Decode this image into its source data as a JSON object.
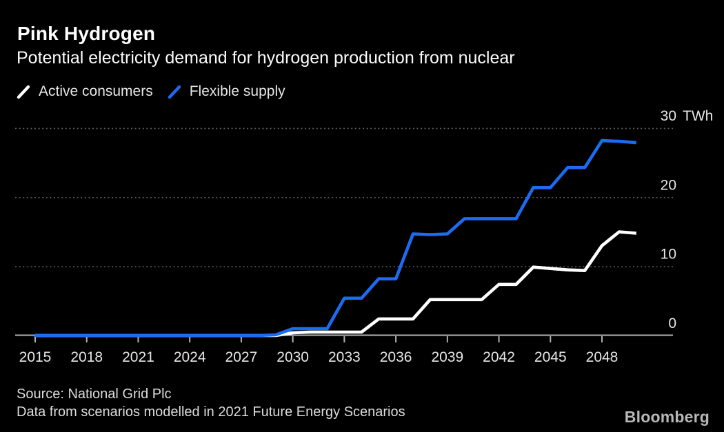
{
  "header": {
    "title": "Pink Hydrogen",
    "subtitle": "Potential electricity demand for hydrogen production from nuclear"
  },
  "legend": {
    "items": [
      {
        "label": "Active consumers",
        "color": "#ffffff"
      },
      {
        "label": "Flexible supply",
        "color": "#1c6cf2"
      }
    ]
  },
  "chart_data": {
    "type": "line",
    "title": "Pink Hydrogen",
    "subtitle": "Potential electricity demand for hydrogen production from nuclear",
    "unit": "TWh",
    "xlim": [
      2015,
      2050
    ],
    "ylim": [
      0,
      30
    ],
    "grid": "dotted-horizontal",
    "legend_position": "top-left",
    "x": [
      2015,
      2016,
      2017,
      2018,
      2019,
      2020,
      2021,
      2022,
      2023,
      2024,
      2025,
      2026,
      2027,
      2028,
      2029,
      2030,
      2031,
      2032,
      2033,
      2034,
      2035,
      2036,
      2037,
      2038,
      2039,
      2040,
      2041,
      2042,
      2043,
      2044,
      2045,
      2046,
      2047,
      2048,
      2049,
      2050
    ],
    "series": [
      {
        "name": "Active consumers",
        "color": "#ffffff",
        "values": [
          0,
          0,
          0,
          0,
          0,
          0,
          0,
          0,
          0,
          0,
          0,
          0,
          0,
          0,
          0,
          0.4,
          0.5,
          0.5,
          0.5,
          0.5,
          2.4,
          2.4,
          2.4,
          5.2,
          5.2,
          5.2,
          5.2,
          7.4,
          7.4,
          9.9,
          9.7,
          9.5,
          9.4,
          13.0,
          15.0,
          14.8
        ]
      },
      {
        "name": "Flexible supply",
        "color": "#1c6cf2",
        "values": [
          0,
          0,
          0,
          0,
          0,
          0,
          0,
          0,
          0,
          0,
          0,
          0,
          0,
          0,
          0.1,
          1.0,
          1.0,
          1.0,
          5.4,
          5.4,
          8.2,
          8.2,
          14.7,
          14.6,
          14.7,
          16.9,
          16.9,
          16.9,
          16.9,
          21.4,
          21.4,
          24.3,
          24.3,
          28.2,
          28.1,
          27.9
        ]
      }
    ],
    "x_ticks": [
      2015,
      2018,
      2021,
      2024,
      2027,
      2030,
      2033,
      2036,
      2039,
      2042,
      2045,
      2048
    ],
    "y_ticks": [
      {
        "value": 0,
        "label": "0",
        "suffix": ""
      },
      {
        "value": 10,
        "label": "10",
        "suffix": ""
      },
      {
        "value": 20,
        "label": "20",
        "suffix": ""
      },
      {
        "value": 30,
        "label": "30",
        "suffix": "TWh"
      }
    ]
  },
  "footer": {
    "source": "Source: National Grid Plc",
    "note": "Data from scenarios modelled in 2021 Future Energy Scenarios",
    "brand": "Bloomberg"
  },
  "colors": {
    "background": "#000000",
    "axis": "#b3b3b3",
    "grid": "#5a5a5a",
    "tick_label": "#e6e6e6",
    "accent_blue": "#1c6cf2",
    "line_white": "#ffffff"
  }
}
